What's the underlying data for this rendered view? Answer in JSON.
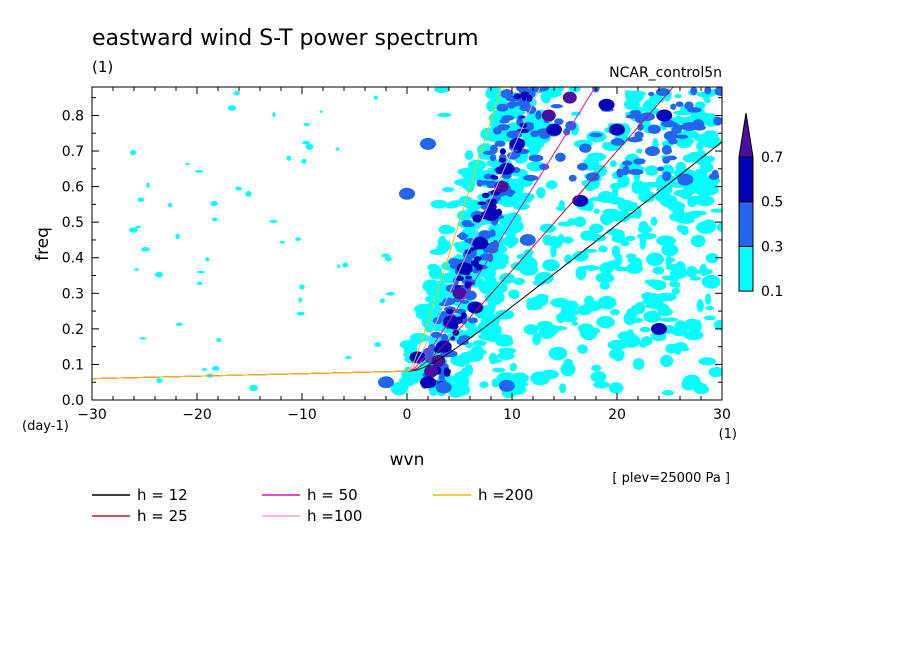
{
  "chart_data": {
    "type": "heatmap",
    "title": "eastward wind S-T power spectrum",
    "subtitle": "(1)",
    "run_label": "NCAR_control5n",
    "xlabel": "wvn",
    "x_unit": "(1)",
    "ylabel": "freq",
    "y_unit": "(day-1)",
    "level_note": "[ plev=25000 Pa ]",
    "xlim": [
      -30,
      30
    ],
    "ylim": [
      0,
      0.88
    ],
    "x_ticks": [
      -30,
      -20,
      -10,
      0,
      10,
      20,
      30
    ],
    "x_tick_labels": [
      "−30",
      "−20",
      "−10",
      "0",
      "10",
      "20",
      "30"
    ],
    "y_ticks": [
      0.0,
      0.1,
      0.2,
      0.3,
      0.4,
      0.5,
      0.6,
      0.7,
      0.8
    ],
    "y_tick_labels": [
      "0.0",
      "0.1",
      "0.2",
      "0.3",
      "0.4",
      "0.5",
      "0.6",
      "0.7",
      "0.8"
    ],
    "colorbar": {
      "levels": [
        0.1,
        0.3,
        0.5,
        0.7
      ],
      "level_labels": [
        "0.1",
        "0.3",
        "0.5",
        "0.7"
      ],
      "colors": [
        "#00ffff",
        "#2266ee",
        "#0000bb",
        "#4b0fa0"
      ]
    },
    "dispersion_curves": [
      {
        "label": "h = 12",
        "h": 12,
        "color": "#000000"
      },
      {
        "label": "h = 25",
        "h": 25,
        "color": "#d01020"
      },
      {
        "label": "h = 50",
        "h": 50,
        "color": "#e010b0"
      },
      {
        "label": "h =100",
        "h": 100,
        "color": "#e8a0e0"
      },
      {
        "label": "h =200",
        "h": 200,
        "color": "#f0c000"
      }
    ],
    "power_blobs": [
      {
        "x": 2.3,
        "y": 0.08,
        "level": 0.7
      },
      {
        "x": 3.0,
        "y": 0.11,
        "level": 0.7
      },
      {
        "x": 2.0,
        "y": 0.05,
        "level": 0.5
      },
      {
        "x": 3.5,
        "y": 0.15,
        "level": 0.5
      },
      {
        "x": 1.0,
        "y": 0.12,
        "level": 0.5
      },
      {
        "x": 5.0,
        "y": 0.3,
        "level": 0.7
      },
      {
        "x": 4.2,
        "y": 0.22,
        "level": 0.5
      },
      {
        "x": 6.5,
        "y": 0.26,
        "level": 0.5
      },
      {
        "x": 5.5,
        "y": 0.37,
        "level": 0.5
      },
      {
        "x": 7.0,
        "y": 0.44,
        "level": 0.5
      },
      {
        "x": 8.0,
        "y": 0.52,
        "level": 0.5
      },
      {
        "x": 9.5,
        "y": 0.65,
        "level": 0.5
      },
      {
        "x": 9.0,
        "y": 0.6,
        "level": 0.7
      },
      {
        "x": 10.5,
        "y": 0.72,
        "level": 0.5
      },
      {
        "x": 13.5,
        "y": 0.8,
        "level": 0.7
      },
      {
        "x": 15.5,
        "y": 0.85,
        "level": 0.7
      },
      {
        "x": 14.0,
        "y": 0.76,
        "level": 0.5
      },
      {
        "x": 16.5,
        "y": 0.56,
        "level": 0.5
      },
      {
        "x": 20.0,
        "y": 0.76,
        "level": 0.5
      },
      {
        "x": 24.5,
        "y": 0.8,
        "level": 0.5
      },
      {
        "x": 19.0,
        "y": 0.83,
        "level": 0.5
      },
      {
        "x": 11.5,
        "y": 0.45,
        "level": 0.3
      },
      {
        "x": 26.5,
        "y": 0.62,
        "level": 0.3
      },
      {
        "x": 24.0,
        "y": 0.2,
        "level": 0.5
      },
      {
        "x": -2.0,
        "y": 0.05,
        "level": 0.3
      },
      {
        "x": 3.5,
        "y": 0.035,
        "level": 0.3
      },
      {
        "x": 9.5,
        "y": 0.04,
        "level": 0.3
      },
      {
        "x": 0.0,
        "y": 0.58,
        "level": 0.3
      },
      {
        "x": 2.0,
        "y": 0.72,
        "level": 0.3
      }
    ]
  }
}
